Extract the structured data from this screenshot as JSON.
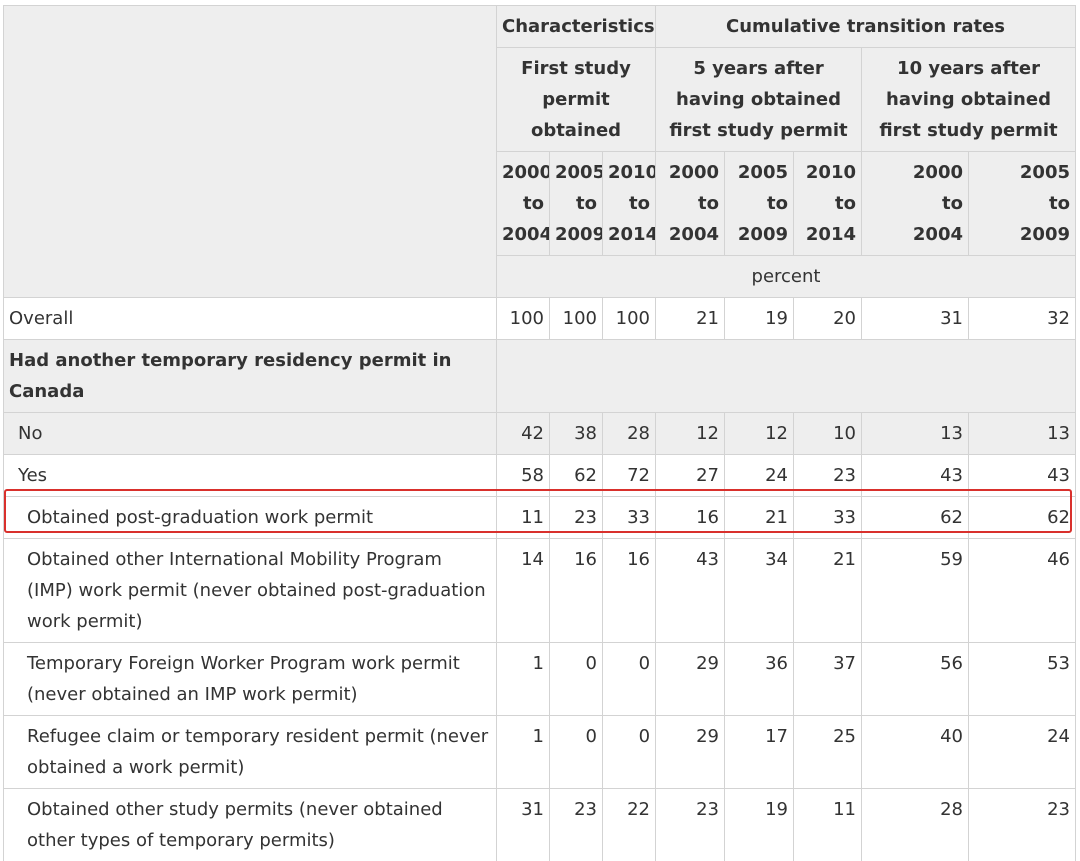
{
  "header": {
    "characteristics": "Characteristics",
    "cumulative": "Cumulative transition rates",
    "first_study": "First study permit obtained",
    "five_years": "5 years after having obtained first study permit",
    "ten_years": "10 years after having obtained first study permit",
    "periods": {
      "p2000": [
        "2000",
        "to",
        "2004"
      ],
      "p2005": [
        "2005",
        "to",
        "2009"
      ],
      "p2010": [
        "2010",
        "to",
        "2014"
      ]
    },
    "unit": "percent"
  },
  "rows": {
    "overall": {
      "label": "Overall",
      "values": [
        "100",
        "100",
        "100",
        "21",
        "19",
        "20",
        "31",
        "32"
      ]
    },
    "section": {
      "label": "Had another temporary residency permit in Canada"
    },
    "no": {
      "label": "No",
      "values": [
        "42",
        "38",
        "28",
        "12",
        "12",
        "10",
        "13",
        "13"
      ]
    },
    "yes": {
      "label": "Yes",
      "values": [
        "58",
        "62",
        "72",
        "27",
        "24",
        "23",
        "43",
        "43"
      ]
    },
    "pgwp": {
      "label": "Obtained post-graduation work permit",
      "values": [
        "11",
        "23",
        "33",
        "16",
        "21",
        "33",
        "62",
        "62"
      ]
    },
    "imp": {
      "label": "Obtained other International Mobility Program (IMP) work permit (never obtained post-graduation work permit)",
      "values": [
        "14",
        "16",
        "16",
        "43",
        "34",
        "21",
        "59",
        "46"
      ]
    },
    "tfwp": {
      "label": "Temporary Foreign Worker Program work permit (never obtained an IMP work permit)",
      "values": [
        "1",
        "0",
        "0",
        "29",
        "36",
        "37",
        "56",
        "53"
      ]
    },
    "refugee": {
      "label": "Refugee claim or temporary resident permit (never obtained a work permit)",
      "values": [
        "1",
        "0",
        "0",
        "29",
        "17",
        "25",
        "40",
        "24"
      ]
    },
    "study": {
      "label": "Obtained other study permits (never obtained other types of temporary permits)",
      "values": [
        "31",
        "23",
        "22",
        "23",
        "19",
        "11",
        "28",
        "23"
      ]
    }
  },
  "highlight_color": "#d9302c"
}
